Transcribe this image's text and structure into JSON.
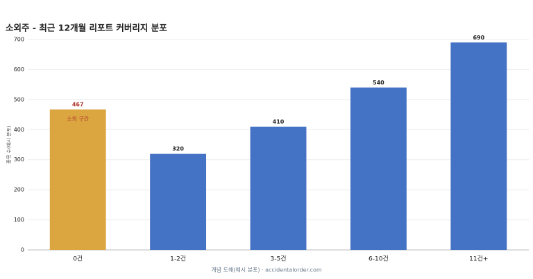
{
  "chart_data": {
    "type": "bar",
    "title": "소외주 - 최근 12개월 리포트 커버리지 분포",
    "y_label": "종목 수(예시 분포)",
    "footer": "개념 도해(예시 분포) · accidentalorder.com",
    "categories": [
      "0건",
      "1-2건",
      "3-5건",
      "6-10건",
      "11건+"
    ],
    "values": [
      467,
      320,
      410,
      540,
      690
    ],
    "colors": [
      "#dba540",
      "#4472c4",
      "#4472c4",
      "#4472c4",
      "#4472c4"
    ],
    "value_label_colors": [
      "#b03a2e",
      "#222222",
      "#222222",
      "#222222",
      "#222222"
    ],
    "annotations": [
      {
        "text": "소외 구간",
        "category": "0건",
        "color": "#b03a2e"
      }
    ],
    "ylim": [
      0,
      700
    ],
    "yticks": [
      0,
      100,
      200,
      300,
      400,
      500,
      600,
      700
    ],
    "grid": true
  }
}
